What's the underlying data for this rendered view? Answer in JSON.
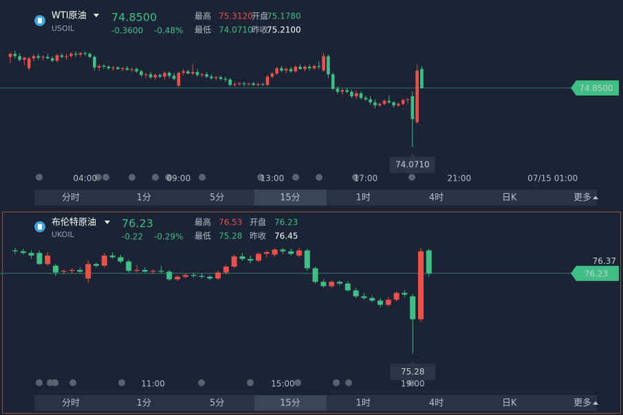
{
  "panels": [
    {
      "name": "WTI原油",
      "code": "USOIL",
      "price": "74.8500",
      "change": "-0.3600",
      "change_pct": "-0.48%",
      "stats": [
        {
          "label": "最高",
          "value": "75.3120"
        },
        {
          "label": "开盘",
          "value": "75.1780"
        },
        {
          "label": "最低",
          "value": "74.0710"
        },
        {
          "label": "昨收",
          "value": "75.2100"
        }
      ]
    },
    {
      "name": "布伦特原油",
      "code": "UKOIL",
      "price": "76.23",
      "change": "-0.22",
      "change_pct": "-0.29%",
      "stats": [
        {
          "label": "最高",
          "value": "76.53"
        },
        {
          "label": "开盘",
          "value": "76.23"
        },
        {
          "label": "最低",
          "value": "75.28"
        },
        {
          "label": "昨收",
          "value": "76.45"
        }
      ]
    }
  ],
  "tabs": [
    "分时",
    "1分",
    "5分",
    "15分",
    "1时",
    "4时",
    "日K",
    "更多"
  ],
  "selected_tab": "15分",
  "chart_data": [
    {
      "type": "candlestick",
      "up_color": "#e8524a",
      "down_color": "#3fbf85",
      "ylim": [
        73.79,
        75.874
      ],
      "yticks": [],
      "last_price": {
        "value": 74.85,
        "label": "74.8500"
      },
      "low_marker": {
        "value": 74.071,
        "label": "74.0710"
      },
      "categories": [
        null,
        null,
        null,
        null,
        null,
        null,
        null,
        null,
        null,
        null,
        null,
        null,
        null,
        null,
        null,
        null,
        "04:00",
        null,
        null,
        null,
        null,
        null,
        null,
        null,
        null,
        null,
        null,
        null,
        null,
        null,
        null,
        null,
        null,
        null,
        null,
        null,
        "09:00",
        null,
        null,
        null,
        null,
        null,
        null,
        null,
        null,
        null,
        null,
        null,
        null,
        null,
        null,
        null,
        null,
        null,
        null,
        null,
        "13:00",
        null,
        null,
        null,
        null,
        null,
        null,
        null,
        null,
        null,
        null,
        null,
        null,
        null,
        null,
        null,
        null,
        null,
        null,
        null,
        "17:00",
        null,
        null,
        null,
        null,
        null,
        null,
        null,
        null,
        null,
        null,
        null,
        null,
        null,
        null,
        null,
        null,
        null,
        null,
        null,
        "21:00",
        null,
        null,
        null,
        null,
        null,
        null,
        null,
        null,
        null,
        null,
        null,
        null,
        null,
        null,
        null,
        null,
        null,
        null,
        null,
        "07/15 01:00"
      ],
      "ohlc": [
        [
          75.26,
          75.32,
          75.18,
          75.3
        ],
        [
          75.3,
          75.34,
          75.24,
          75.27
        ],
        [
          75.27,
          75.31,
          75.2,
          75.22
        ],
        [
          75.22,
          75.26,
          75.15,
          75.25
        ],
        [
          75.11,
          75.26,
          75.08,
          75.24
        ],
        [
          75.24,
          75.29,
          75.2,
          75.27
        ],
        [
          75.27,
          75.3,
          75.22,
          75.25
        ],
        [
          75.25,
          75.28,
          75.21,
          75.26
        ],
        [
          75.26,
          75.3,
          75.23,
          75.24
        ],
        [
          75.24,
          75.27,
          75.19,
          75.21
        ],
        [
          75.21,
          75.3,
          75.19,
          75.28
        ],
        [
          75.28,
          75.31,
          75.24,
          75.26
        ],
        [
          75.26,
          75.3,
          75.22,
          75.27
        ],
        [
          75.27,
          75.32,
          75.25,
          75.3
        ],
        [
          75.3,
          75.33,
          75.26,
          75.29
        ],
        [
          75.29,
          75.32,
          75.26,
          75.31
        ],
        [
          75.31,
          75.33,
          75.27,
          75.3
        ],
        [
          75.3,
          75.32,
          75.24,
          75.26
        ],
        [
          75.26,
          75.28,
          75.08,
          75.12
        ],
        [
          75.12,
          75.16,
          75.08,
          75.14
        ],
        [
          75.14,
          75.17,
          75.1,
          75.13
        ],
        [
          75.13,
          75.15,
          75.09,
          75.11
        ],
        [
          75.11,
          75.14,
          75.08,
          75.12
        ],
        [
          75.12,
          75.14,
          75.09,
          75.1
        ],
        [
          75.1,
          75.13,
          75.07,
          75.11
        ],
        [
          75.11,
          75.14,
          75.08,
          75.09
        ],
        [
          75.09,
          75.12,
          75.06,
          75.1
        ],
        [
          75.1,
          75.12,
          75.05,
          75.07
        ],
        [
          75.07,
          75.09,
          75.0,
          75.02
        ],
        [
          75.02,
          75.05,
          74.98,
          75.03
        ],
        [
          75.03,
          75.06,
          74.97,
          74.99
        ],
        [
          74.99,
          75.04,
          74.96,
          75.02
        ],
        [
          75.02,
          75.04,
          74.98,
          75.0
        ],
        [
          75.0,
          75.07,
          74.96,
          75.05
        ],
        [
          75.05,
          75.07,
          74.98,
          75.01
        ],
        [
          75.01,
          75.05,
          74.95,
          74.97
        ],
        [
          74.88,
          75.07,
          74.86,
          75.05
        ],
        [
          75.05,
          75.1,
          75.02,
          75.07
        ],
        [
          75.07,
          75.09,
          75.03,
          75.04
        ],
        [
          75.04,
          75.16,
          75.02,
          75.06
        ],
        [
          75.06,
          75.1,
          75.0,
          75.02
        ],
        [
          75.02,
          75.05,
          74.99,
          75.03
        ],
        [
          75.03,
          75.06,
          74.98,
          75.0
        ],
        [
          75.0,
          75.03,
          74.96,
          74.98
        ],
        [
          74.98,
          75.01,
          74.95,
          74.99
        ],
        [
          74.99,
          75.01,
          74.95,
          74.97
        ],
        [
          74.97,
          75.0,
          74.93,
          74.96
        ],
        [
          74.96,
          74.98,
          74.87,
          74.89
        ],
        [
          74.89,
          74.93,
          74.87,
          74.9
        ],
        [
          74.9,
          74.93,
          74.88,
          74.91
        ],
        [
          74.91,
          74.93,
          74.88,
          74.9
        ],
        [
          74.9,
          74.92,
          74.88,
          74.91
        ],
        [
          74.91,
          74.93,
          74.88,
          74.89
        ],
        [
          74.89,
          74.92,
          74.87,
          74.9
        ],
        [
          74.9,
          74.92,
          74.88,
          74.89
        ],
        [
          74.89,
          75.02,
          74.88,
          75.0
        ],
        [
          75.0,
          75.06,
          74.98,
          75.04
        ],
        [
          75.04,
          75.13,
          75.02,
          75.11
        ],
        [
          75.11,
          75.14,
          75.06,
          75.08
        ],
        [
          75.08,
          75.12,
          75.04,
          75.1
        ],
        [
          75.1,
          75.13,
          75.05,
          75.07
        ],
        [
          75.07,
          75.15,
          75.05,
          75.13
        ],
        [
          75.13,
          75.16,
          75.09,
          75.1
        ],
        [
          75.1,
          75.15,
          75.07,
          75.13
        ],
        [
          75.13,
          75.16,
          75.08,
          75.11
        ],
        [
          75.11,
          75.16,
          75.09,
          75.14
        ],
        [
          75.14,
          75.2,
          75.1,
          75.13
        ],
        [
          75.08,
          75.31,
          75.06,
          75.27
        ],
        [
          75.27,
          75.29,
          74.98,
          75.03
        ],
        [
          75.03,
          75.05,
          74.82,
          74.84
        ],
        [
          74.84,
          74.87,
          74.77,
          74.8
        ],
        [
          74.8,
          74.84,
          74.76,
          74.82
        ],
        [
          74.82,
          74.85,
          74.78,
          74.8
        ],
        [
          74.8,
          74.83,
          74.72,
          74.74
        ],
        [
          74.74,
          74.82,
          74.7,
          74.78
        ],
        [
          74.78,
          74.8,
          74.7,
          74.72
        ],
        [
          74.72,
          74.75,
          74.68,
          74.7
        ],
        [
          74.7,
          74.74,
          74.63,
          74.66
        ],
        [
          74.66,
          74.7,
          74.58,
          74.62
        ],
        [
          74.62,
          74.66,
          74.6,
          74.64
        ],
        [
          74.64,
          74.7,
          74.62,
          74.68
        ],
        [
          74.68,
          74.75,
          74.64,
          74.66
        ],
        [
          74.66,
          74.68,
          74.59,
          74.62
        ],
        [
          74.62,
          74.66,
          74.6,
          74.64
        ],
        [
          74.64,
          74.71,
          74.62,
          74.69
        ],
        [
          74.69,
          74.72,
          74.64,
          74.7
        ],
        [
          74.74,
          74.8,
          74.071,
          74.44
        ],
        [
          74.4,
          75.16,
          74.38,
          75.08
        ],
        [
          75.1,
          75.14,
          74.84,
          74.85
        ],
        null,
        null,
        null,
        null,
        null,
        null,
        null,
        null,
        null,
        null,
        null,
        null,
        null,
        null,
        null,
        null,
        null,
        null,
        null,
        null,
        null,
        null,
        null,
        null,
        null,
        null,
        null,
        null
      ]
    },
    {
      "type": "candlestick",
      "up_color": "#e8524a",
      "down_color": "#3fbf85",
      "ylim": [
        75.04,
        76.86
      ],
      "yticks": [
        76.37
      ],
      "last_price": {
        "value": 76.23,
        "label": "76.23"
      },
      "low_marker": {
        "value": 75.28,
        "label": "75.28"
      },
      "categories": [
        null,
        null,
        null,
        null,
        null,
        null,
        null,
        null,
        null,
        null,
        null,
        null,
        null,
        null,
        null,
        null,
        null,
        "11:00",
        null,
        null,
        null,
        null,
        null,
        null,
        null,
        null,
        null,
        null,
        null,
        null,
        null,
        null,
        null,
        "15:00",
        null,
        null,
        null,
        null,
        null,
        null,
        null,
        null,
        null,
        null,
        null,
        null,
        null,
        null,
        null,
        "19:00",
        null,
        null
      ],
      "ohlc": [
        [
          76.5,
          76.53,
          76.46,
          76.49
        ],
        [
          76.49,
          76.52,
          76.45,
          76.47
        ],
        [
          76.47,
          76.5,
          76.4,
          76.44
        ],
        [
          76.47,
          76.5,
          76.33,
          76.34
        ],
        [
          76.34,
          76.48,
          76.32,
          76.44
        ],
        [
          76.32,
          76.34,
          76.2,
          76.24
        ],
        [
          76.25,
          76.28,
          76.22,
          76.26
        ],
        [
          76.26,
          76.29,
          76.23,
          76.27
        ],
        [
          76.27,
          76.3,
          76.24,
          76.25
        ],
        [
          76.17,
          76.38,
          76.12,
          76.34
        ],
        [
          76.34,
          76.36,
          76.3,
          76.32
        ],
        [
          76.32,
          76.47,
          76.3,
          76.44
        ],
        [
          76.44,
          76.48,
          76.4,
          76.42
        ],
        [
          76.42,
          76.45,
          76.35,
          76.37
        ],
        [
          76.37,
          76.39,
          76.24,
          76.26
        ],
        [
          76.26,
          76.33,
          76.24,
          76.27
        ],
        [
          76.27,
          76.3,
          76.24,
          76.25
        ],
        [
          76.25,
          76.28,
          76.22,
          76.26
        ],
        [
          76.26,
          76.32,
          76.23,
          76.25
        ],
        [
          76.25,
          76.27,
          76.14,
          76.16
        ],
        [
          76.16,
          76.21,
          76.14,
          76.19
        ],
        [
          76.19,
          76.23,
          76.17,
          76.21
        ],
        [
          76.21,
          76.24,
          76.18,
          76.2
        ],
        [
          76.2,
          76.23,
          76.17,
          76.19
        ],
        [
          76.19,
          76.21,
          76.15,
          76.17
        ],
        [
          76.17,
          76.26,
          76.15,
          76.24
        ],
        [
          76.24,
          76.33,
          76.22,
          76.31
        ],
        [
          76.31,
          76.45,
          76.29,
          76.43
        ],
        [
          76.43,
          76.47,
          76.38,
          76.4
        ],
        [
          76.4,
          76.44,
          76.35,
          76.38
        ],
        [
          76.38,
          76.48,
          76.36,
          76.46
        ],
        [
          76.46,
          76.5,
          76.42,
          76.48
        ],
        [
          76.45,
          76.53,
          76.43,
          76.51
        ],
        [
          76.51,
          76.53,
          76.46,
          76.49
        ],
        [
          76.49,
          76.52,
          76.44,
          76.46
        ],
        [
          76.44,
          76.53,
          76.42,
          76.5
        ],
        [
          76.5,
          76.52,
          76.26,
          76.29
        ],
        [
          76.29,
          76.31,
          76.11,
          76.13
        ],
        [
          76.13,
          76.16,
          76.06,
          76.08
        ],
        [
          76.08,
          76.15,
          76.06,
          76.13
        ],
        [
          76.13,
          76.15,
          76.09,
          76.11
        ],
        [
          76.11,
          76.14,
          76.01,
          76.03
        ],
        [
          76.03,
          76.06,
          75.94,
          75.96
        ],
        [
          75.96,
          76.0,
          75.92,
          75.94
        ],
        [
          75.94,
          75.97,
          75.89,
          75.91
        ],
        [
          75.91,
          75.94,
          75.83,
          75.86
        ],
        [
          75.86,
          75.95,
          75.84,
          75.92
        ],
        [
          75.92,
          76.02,
          75.9,
          76.0
        ],
        [
          76.0,
          76.03,
          75.95,
          75.98
        ],
        [
          75.96,
          75.99,
          75.28,
          75.69
        ],
        [
          75.69,
          76.53,
          75.66,
          76.49
        ],
        [
          76.5,
          76.52,
          76.19,
          76.23
        ]
      ]
    }
  ]
}
